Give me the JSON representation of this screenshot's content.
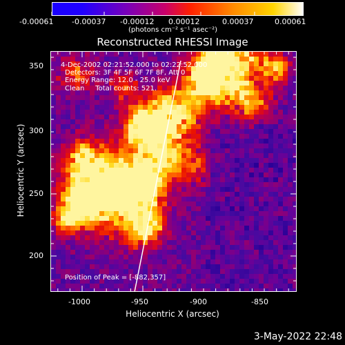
{
  "colorbar": {
    "tick_labels": [
      "-0.00061",
      "-0.00037",
      "-0.00012",
      "0.00012",
      "0.00037",
      "0.00061"
    ],
    "unit_label": "(photons cm⁻² s⁻¹ asec⁻²)",
    "stops": [
      "#1a00ff",
      "#2a00ff",
      "#7a00b8",
      "#c8006a",
      "#ff2a00",
      "#ff8a00",
      "#ffd400",
      "#ffffff"
    ]
  },
  "title": "Reconstructed RHESSI Image",
  "annotations": {
    "time_range": "4-Dec-2002 02:21:52.000 to 02:22:52.000",
    "detectors": "Detectors: 3F 4F 5F 6F 7F 8F, Att 0",
    "energy": "Energy Range: 12.0 - 25.0 keV",
    "clean": "Clean     Total counts: 521.",
    "peak": "Position of Peak = [-882,357]"
  },
  "axes": {
    "xlabel": "Heliocentric X (arcsec)",
    "ylabel": "Heliocentric Y (arcsec)",
    "x_ticks": [
      "-1000",
      "-950",
      "-900",
      "-850"
    ],
    "y_ticks": [
      "200",
      "250",
      "300",
      "350"
    ]
  },
  "footer": {
    "timestamp": "3-May-2022 22:48"
  }
}
